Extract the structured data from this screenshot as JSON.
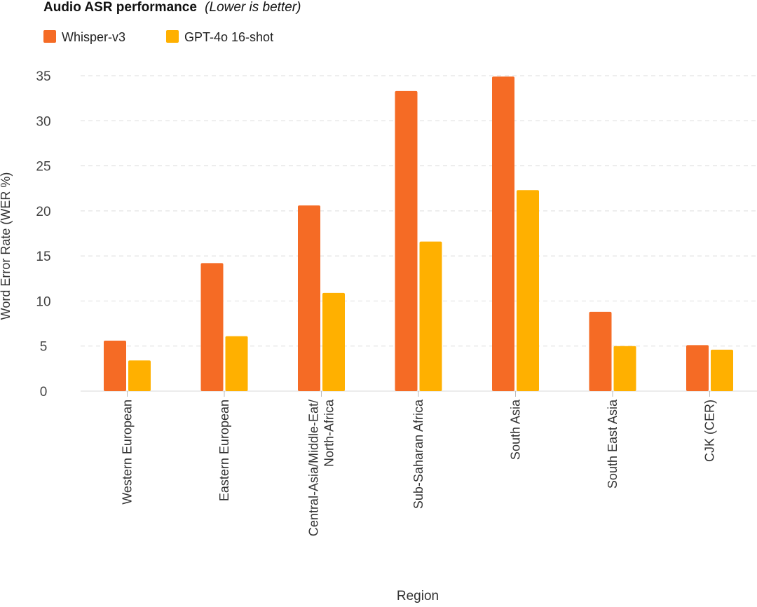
{
  "chart_data": {
    "type": "bar",
    "title": "Audio ASR performance",
    "subtitle": "(Lower is better)",
    "xlabel": "Region",
    "ylabel": "Word Error Rate (WER %)",
    "ylim": [
      0,
      35
    ],
    "yticks": [
      0,
      5,
      10,
      15,
      20,
      25,
      30,
      35
    ],
    "grid": true,
    "legend": "top-left",
    "categories": [
      [
        "Western European"
      ],
      [
        "Eastern European"
      ],
      [
        "Central-Asia/Middle-Eat/",
        "North-Africa"
      ],
      [
        "Sub-Saharan Africa"
      ],
      [
        "South Asia"
      ],
      [
        "South East Asia"
      ],
      [
        "CJK (CER)"
      ]
    ],
    "series": [
      {
        "name": "Whisper-v3",
        "color": "#F56B25",
        "values": [
          5.6,
          14.2,
          20.6,
          33.3,
          34.9,
          8.8,
          5.1
        ]
      },
      {
        "name": "GPT-4o 16-shot",
        "color": "#FFB000",
        "values": [
          3.4,
          6.1,
          10.9,
          16.6,
          22.3,
          5.0,
          4.6
        ]
      }
    ]
  }
}
